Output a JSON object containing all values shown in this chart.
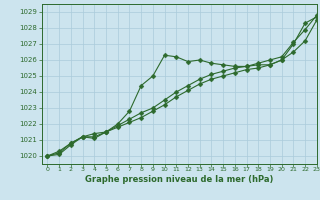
{
  "title": "Graphe pression niveau de la mer (hPa)",
  "bg_color": "#cce4ee",
  "grid_color": "#aacbdb",
  "line_color": "#2d6a2d",
  "xlim": [
    -0.5,
    23
  ],
  "ylim": [
    1019.5,
    1029.5
  ],
  "yticks": [
    1020,
    1021,
    1022,
    1023,
    1024,
    1025,
    1026,
    1027,
    1028,
    1029
  ],
  "xticks": [
    0,
    1,
    2,
    3,
    4,
    5,
    6,
    7,
    8,
    9,
    10,
    11,
    12,
    13,
    14,
    15,
    16,
    17,
    18,
    19,
    20,
    21,
    22,
    23
  ],
  "series1_x": [
    0,
    1,
    2,
    3,
    4,
    5,
    6,
    7,
    8,
    9,
    10,
    11,
    12,
    13,
    14,
    15,
    16,
    17,
    18,
    19,
    20,
    21,
    22,
    23
  ],
  "series1_y": [
    1020.0,
    1020.1,
    1020.7,
    1021.2,
    1021.1,
    1021.5,
    1022.0,
    1022.8,
    1024.4,
    1025.0,
    1026.3,
    1026.2,
    1025.9,
    1026.0,
    1025.8,
    1025.7,
    1025.6,
    1025.6,
    1025.7,
    1025.7,
    1026.0,
    1027.0,
    1028.3,
    1028.7
  ],
  "series2_x": [
    0,
    1,
    2,
    3,
    4,
    5,
    6,
    7,
    8,
    9,
    10,
    11,
    12,
    13,
    14,
    15,
    16,
    17,
    18,
    19,
    20,
    21,
    22,
    23
  ],
  "series2_y": [
    1020.0,
    1020.2,
    1020.8,
    1021.2,
    1021.2,
    1021.5,
    1021.8,
    1022.1,
    1022.4,
    1022.8,
    1023.2,
    1023.7,
    1024.1,
    1024.5,
    1024.8,
    1025.0,
    1025.2,
    1025.4,
    1025.5,
    1025.7,
    1026.0,
    1026.5,
    1027.2,
    1028.5
  ],
  "series3_x": [
    0,
    1,
    2,
    3,
    4,
    5,
    6,
    7,
    8,
    9,
    10,
    11,
    12,
    13,
    14,
    15,
    16,
    17,
    18,
    19,
    20,
    21,
    22,
    23
  ],
  "series3_y": [
    1020.0,
    1020.3,
    1020.8,
    1021.2,
    1021.4,
    1021.5,
    1021.9,
    1022.3,
    1022.7,
    1023.0,
    1023.5,
    1024.0,
    1024.4,
    1024.8,
    1025.1,
    1025.3,
    1025.5,
    1025.6,
    1025.8,
    1026.0,
    1026.2,
    1027.1,
    1027.9,
    1028.8
  ]
}
